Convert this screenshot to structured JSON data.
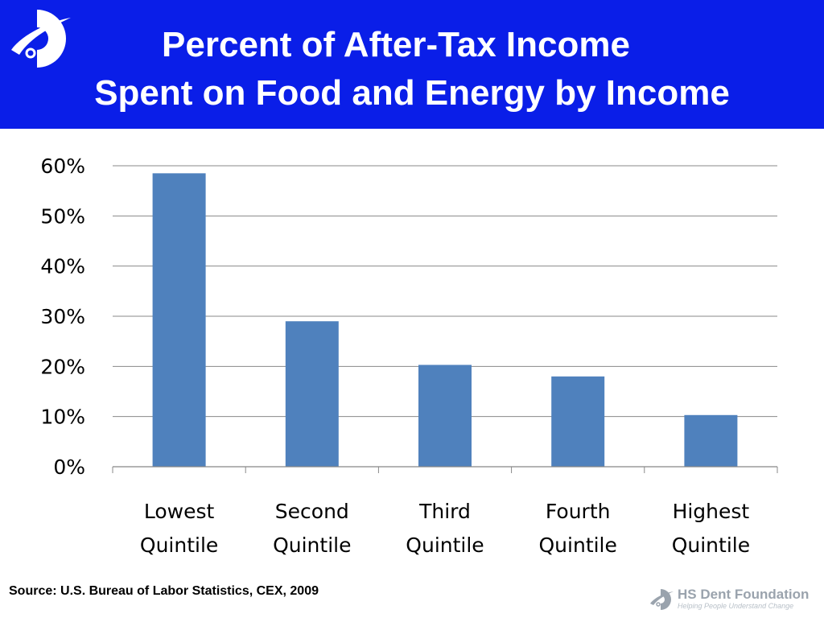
{
  "header": {
    "title_line1": "Percent of After-Tax Income",
    "title_line2": "Spent on Food and Energy by Income"
  },
  "chart_data": {
    "type": "bar",
    "title": "Percent of After-Tax Income Spent on Food and Energy by Income",
    "categories": [
      [
        "Lowest",
        "Quintile"
      ],
      [
        "Second",
        "Quintile"
      ],
      [
        "Third",
        "Quintile"
      ],
      [
        "Fourth",
        "Quintile"
      ],
      [
        "Highest",
        "Quintile"
      ]
    ],
    "values": [
      58.5,
      29,
      20.3,
      18,
      10.3
    ],
    "unit": "%",
    "ylim": [
      0,
      60
    ],
    "yticks": [
      0,
      10,
      20,
      30,
      40,
      50,
      60
    ],
    "ytick_labels": [
      "0%",
      "10%",
      "20%",
      "30%",
      "40%",
      "50%",
      "60%"
    ],
    "grid": true,
    "legend": "none",
    "bar_color": "#4f81bd"
  },
  "footer": {
    "source": "Source: U.S. Bureau of Labor Statistics, CEX, 2009"
  },
  "brand": {
    "name": "HS Dent Foundation",
    "tagline": "Helping People Understand Change",
    "logo_icon": "hs-dent-logo-icon"
  },
  "colors": {
    "header_bg": "#0a1ee8",
    "bar": "#4f81bd",
    "gridline": "#888888"
  }
}
